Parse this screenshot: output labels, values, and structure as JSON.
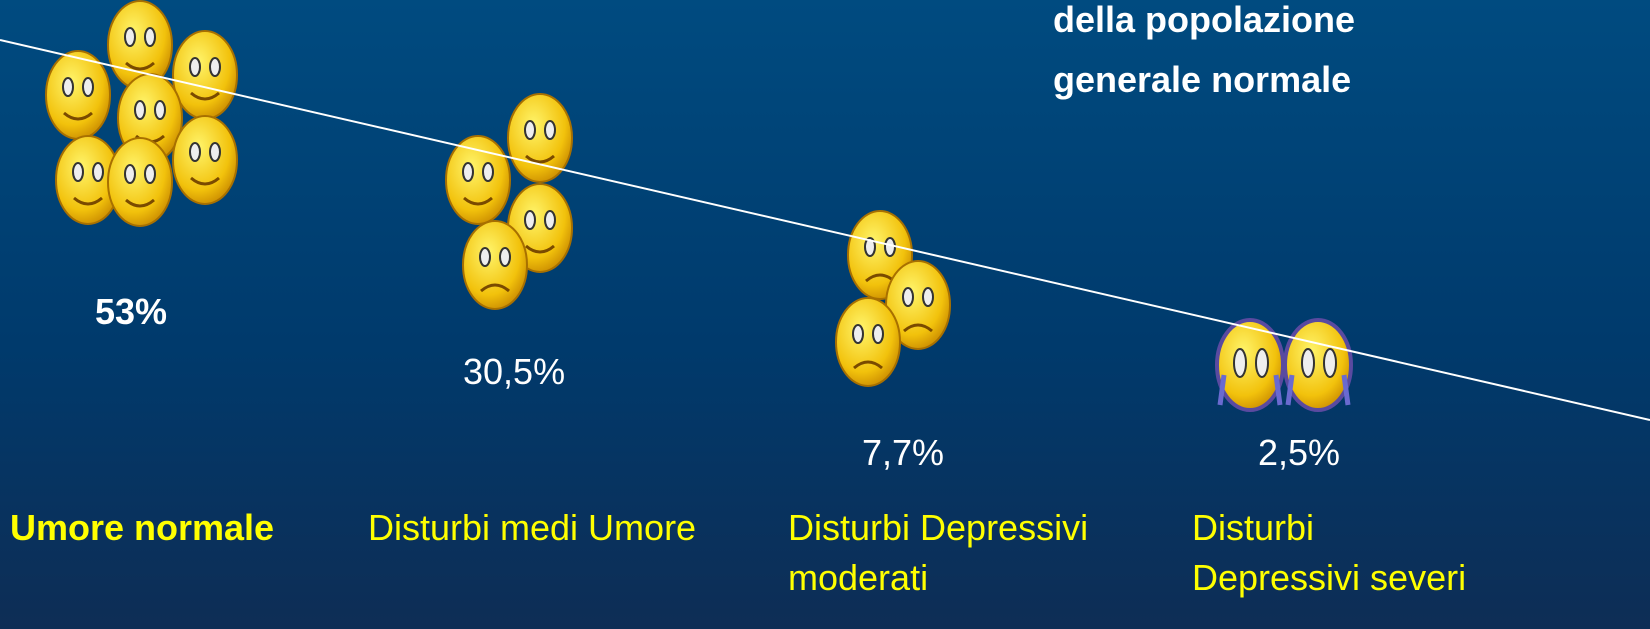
{
  "title_lines": [
    "della popolazione",
    "generale normale"
  ],
  "groups": [
    {
      "percent": "53%",
      "label_lines": [
        "Umore normale"
      ]
    },
    {
      "percent": "30,5%",
      "label_lines": [
        "Disturbi medi Umore"
      ]
    },
    {
      "percent": "7,7%",
      "label_lines": [
        "Disturbi Depressivi",
        "moderati"
      ]
    },
    {
      "percent": "2,5%",
      "label_lines": [
        "Disturbi",
        "Depressivi severi"
      ]
    }
  ]
}
